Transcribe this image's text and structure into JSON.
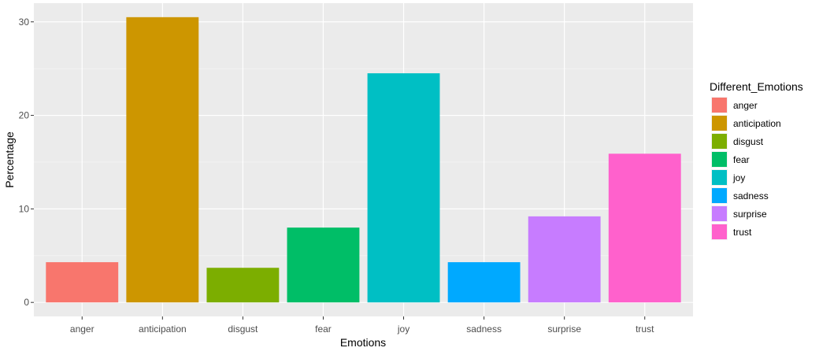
{
  "chart_data": {
    "type": "bar",
    "categories": [
      "anger",
      "anticipation",
      "disgust",
      "fear",
      "joy",
      "sadness",
      "surprise",
      "trust"
    ],
    "values": [
      4.3,
      30.5,
      3.7,
      8.0,
      24.5,
      4.3,
      9.2,
      15.9
    ],
    "colors": [
      "#F8766D",
      "#CD9600",
      "#7CAE00",
      "#00BE67",
      "#00BFC4",
      "#00A9FF",
      "#C77CFF",
      "#FF61CC"
    ],
    "title": "",
    "xlabel": "Emotions",
    "ylabel": "Percentage",
    "ylim": [
      -1.5,
      32.0
    ],
    "yticks": [
      0,
      10,
      20,
      30
    ],
    "grid": true,
    "legend": {
      "title": "Different_Emotions",
      "position": "right",
      "items": [
        "anger",
        "anticipation",
        "disgust",
        "fear",
        "joy",
        "sadness",
        "surprise",
        "trust"
      ]
    }
  }
}
